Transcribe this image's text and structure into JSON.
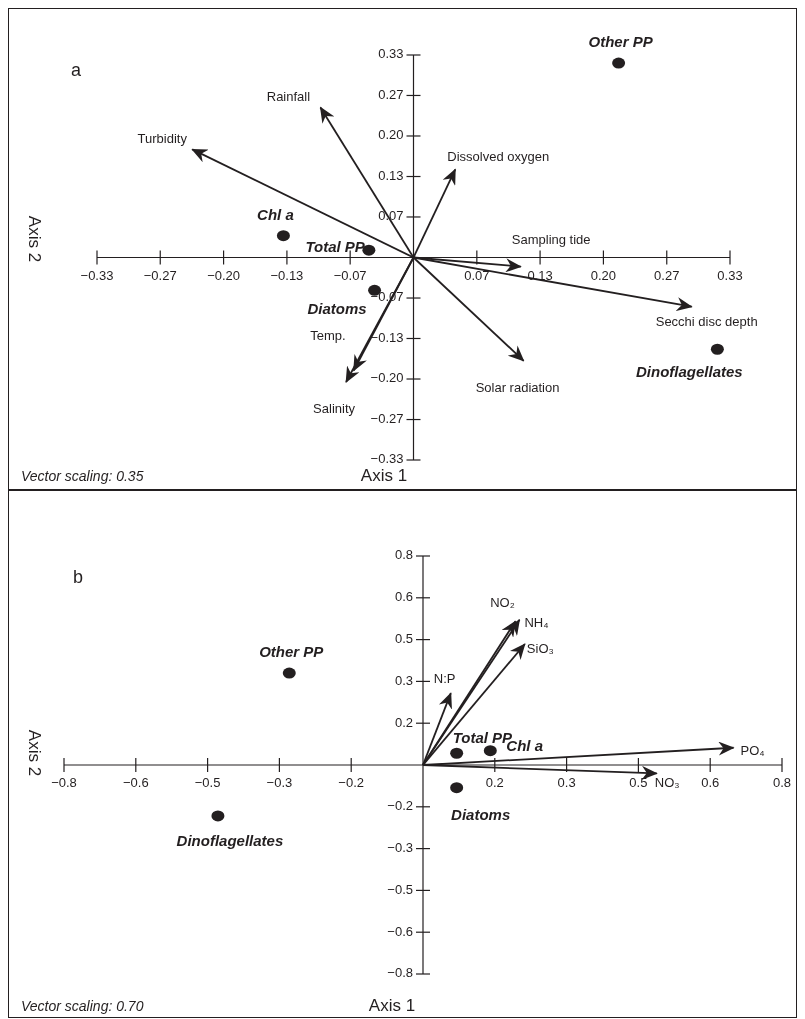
{
  "chart_data": [
    {
      "type": "scatter",
      "title": "a",
      "xlabel": "Axis 1",
      "ylabel": "Axis 2",
      "annotations": [
        "Vector scaling: 0.35"
      ],
      "marker": "circle",
      "xlim": [
        -0.3333,
        0.3333
      ],
      "ylim": [
        -0.3333,
        0.3333
      ],
      "xticks": [
        {
          "value": -0.3333,
          "label": "−0.33"
        },
        {
          "value": -0.2667,
          "label": "−0.27"
        },
        {
          "value": -0.2,
          "label": "−0.20"
        },
        {
          "value": -0.1333,
          "label": "−0.13"
        },
        {
          "value": -0.0667,
          "label": "−0.07"
        },
        {
          "value": 0.0667,
          "label": "0.07"
        },
        {
          "value": 0.1333,
          "label": "0.13"
        },
        {
          "value": 0.2,
          "label": "0.20"
        },
        {
          "value": 0.2667,
          "label": "0.27"
        },
        {
          "value": 0.3333,
          "label": "0.33"
        }
      ],
      "yticks": [
        {
          "value": -0.3333,
          "label": "−0.33"
        },
        {
          "value": -0.2667,
          "label": "−0.27"
        },
        {
          "value": -0.2,
          "label": "−0.20"
        },
        {
          "value": -0.1333,
          "label": "−0.13"
        },
        {
          "value": -0.0667,
          "label": "−0.07"
        },
        {
          "value": 0.0667,
          "label": "0.07"
        },
        {
          "value": 0.1333,
          "label": "0.13"
        },
        {
          "value": 0.2,
          "label": "0.20"
        },
        {
          "value": 0.2667,
          "label": "0.27"
        },
        {
          "value": 0.3333,
          "label": "0.33"
        }
      ],
      "series": [
        {
          "name": "Turbidity",
          "type": "line",
          "marker": "none",
          "color": "#231f20",
          "x": [
            0,
            -0.233
          ],
          "values": [
            0,
            0.178
          ]
        },
        {
          "name": "Rainfall",
          "type": "line",
          "marker": "none",
          "color": "#231f20",
          "x": [
            0,
            -0.098
          ],
          "values": [
            0,
            0.247
          ]
        },
        {
          "name": "Dissolved oxygen",
          "type": "line",
          "marker": "none",
          "color": "#231f20",
          "x": [
            0,
            0.044
          ],
          "values": [
            0,
            0.145
          ]
        },
        {
          "name": "Sampling tide",
          "type": "line",
          "marker": "none",
          "color": "#231f20",
          "x": [
            0,
            0.113
          ],
          "values": [
            0,
            -0.015
          ]
        },
        {
          "name": "Secchi disc depth",
          "type": "line",
          "marker": "none",
          "color": "#231f20",
          "x": [
            0,
            0.293
          ],
          "values": [
            0,
            -0.081
          ]
        },
        {
          "name": "Solar radiation",
          "type": "line",
          "marker": "none",
          "color": "#231f20",
          "x": [
            0,
            0.116
          ],
          "values": [
            0,
            -0.17
          ]
        },
        {
          "name": "Temp.",
          "type": "line",
          "marker": "none",
          "color": "#231f20",
          "x": [
            0,
            -0.063
          ],
          "values": [
            0,
            -0.186
          ]
        },
        {
          "name": "Salinity",
          "type": "line",
          "marker": "none",
          "color": "#231f20",
          "x": [
            0,
            -0.071
          ],
          "values": [
            0,
            -0.205
          ]
        },
        {
          "name": "Other PP",
          "type": "scatter",
          "color": "#231f20",
          "x": [
            0.216
          ],
          "values": [
            0.32
          ]
        },
        {
          "name": "Chl a",
          "type": "scatter",
          "color": "#231f20",
          "x": [
            -0.137
          ],
          "values": [
            0.036
          ]
        },
        {
          "name": "Total PP",
          "type": "scatter",
          "color": "#231f20",
          "x": [
            -0.047
          ],
          "values": [
            0.012
          ]
        },
        {
          "name": "Diatoms",
          "type": "scatter",
          "color": "#231f20",
          "x": [
            -0.041
          ],
          "values": [
            -0.054
          ]
        },
        {
          "name": "Dinoflagellates",
          "type": "scatter",
          "color": "#231f20",
          "x": [
            0.32
          ],
          "values": [
            -0.151
          ]
        }
      ]
    },
    {
      "type": "scatter",
      "title": "b",
      "xlabel": "Axis 1",
      "ylabel": "Axis 2",
      "annotations": [
        "Vector scaling: 0.70"
      ],
      "marker": "circle",
      "xlim": [
        -0.8,
        0.8
      ],
      "ylim": [
        -0.8,
        0.8
      ],
      "xticks": [
        {
          "value": -0.8,
          "label": "−0.8"
        },
        {
          "value": -0.64,
          "label": "−0.6"
        },
        {
          "value": -0.48,
          "label": "−0.5"
        },
        {
          "value": -0.32,
          "label": "−0.3"
        },
        {
          "value": -0.16,
          "label": "−0.2"
        },
        {
          "value": 0.16,
          "label": "0.2"
        },
        {
          "value": 0.32,
          "label": "0.3"
        },
        {
          "value": 0.48,
          "label": "0.5"
        },
        {
          "value": 0.64,
          "label": "0.6"
        },
        {
          "value": 0.8,
          "label": "0.8"
        }
      ],
      "yticks": [
        {
          "value": -0.8,
          "label": "−0.8"
        },
        {
          "value": -0.64,
          "label": "−0.6"
        },
        {
          "value": -0.48,
          "label": "−0.5"
        },
        {
          "value": -0.32,
          "label": "−0.3"
        },
        {
          "value": -0.16,
          "label": "−0.2"
        },
        {
          "value": 0.16,
          "label": "0.2"
        },
        {
          "value": 0.32,
          "label": "0.3"
        },
        {
          "value": 0.48,
          "label": "0.5"
        },
        {
          "value": 0.64,
          "label": "0.6"
        },
        {
          "value": 0.8,
          "label": "0.8"
        }
      ],
      "series": [
        {
          "name": "N:P",
          "type": "line",
          "marker": "none",
          "color": "#231f20",
          "x": [
            0,
            0.062
          ],
          "values": [
            0,
            0.275
          ]
        },
        {
          "name": "NO₂",
          "type": "line",
          "marker": "none",
          "color": "#231f20",
          "x": [
            0,
            0.206
          ],
          "values": [
            0,
            0.55
          ]
        },
        {
          "name": "NH₄",
          "type": "line",
          "marker": "none",
          "color": "#231f20",
          "x": [
            0,
            0.215
          ],
          "values": [
            0,
            0.556
          ]
        },
        {
          "name": "SiO₃",
          "type": "line",
          "marker": "none",
          "color": "#231f20",
          "x": [
            0,
            0.227
          ],
          "values": [
            0,
            0.463
          ]
        },
        {
          "name": "PO₄",
          "type": "line",
          "marker": "none",
          "color": "#231f20",
          "x": [
            0,
            0.692
          ],
          "values": [
            0,
            0.066
          ]
        },
        {
          "name": "NO₃",
          "type": "line",
          "marker": "none",
          "color": "#231f20",
          "x": [
            0,
            0.521
          ],
          "values": [
            0,
            -0.032
          ]
        },
        {
          "name": "Other PP",
          "type": "scatter",
          "color": "#231f20",
          "x": [
            -0.298
          ],
          "values": [
            0.352
          ]
        },
        {
          "name": "Total PP",
          "type": "scatter",
          "color": "#231f20",
          "x": [
            0.075
          ],
          "values": [
            0.045
          ]
        },
        {
          "name": "Chl a",
          "type": "scatter",
          "color": "#231f20",
          "x": [
            0.15
          ],
          "values": [
            0.055
          ]
        },
        {
          "name": "Diatoms",
          "type": "scatter",
          "color": "#231f20",
          "x": [
            0.075
          ],
          "values": [
            -0.087
          ]
        },
        {
          "name": "Dinoflagellates",
          "type": "scatter",
          "color": "#231f20",
          "x": [
            -0.457
          ],
          "values": [
            -0.195
          ]
        }
      ]
    }
  ]
}
